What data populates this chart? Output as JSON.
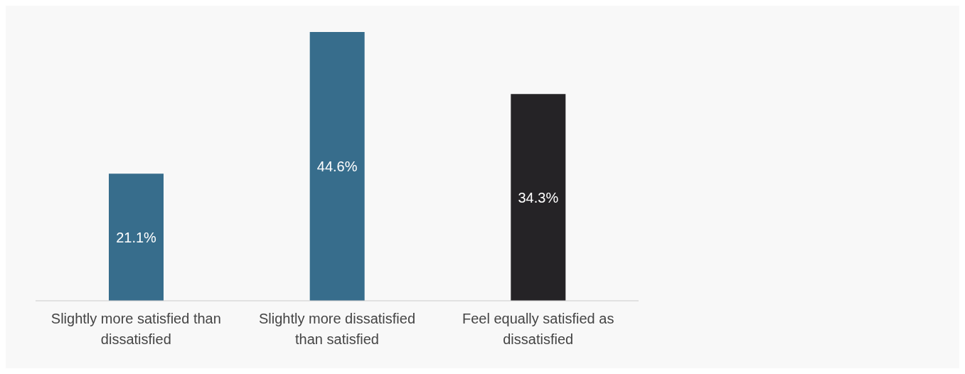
{
  "chart_data": {
    "type": "bar",
    "categories": [
      "Slightly more satisfied than dissatisfied",
      "Slightly more dissatisfied than satisfied",
      "Feel equally satisfied as dissatisfied"
    ],
    "values": [
      21.1,
      44.6,
      34.3
    ],
    "colors": [
      "#376d8c",
      "#376d8c",
      "#252326"
    ],
    "value_labels": [
      "21.1%",
      "44.6%",
      "34.3%"
    ],
    "legend": false,
    "grid": false
  }
}
